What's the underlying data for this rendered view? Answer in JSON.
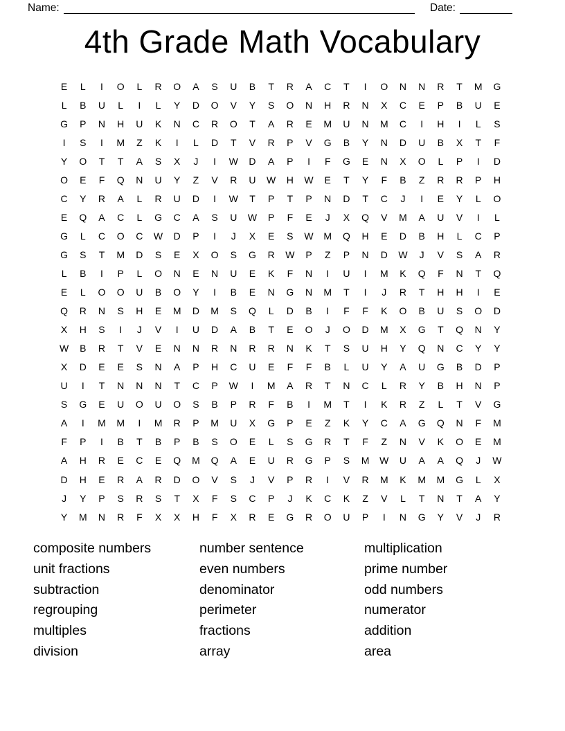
{
  "header": {
    "name_label": "Name:",
    "date_label": "Date:"
  },
  "title": "4th Grade Math Vocabulary",
  "grid": {
    "rows": [
      "ELIOLROASUBTRACTIONNRTMG",
      "LBULILYDOVYSONHRNXCEPBUE",
      "GPNHUKNCROTAREMUNMCIHILS",
      "ISIMZKILDTVRPVGBYNDUBXTF",
      "YOTTASXJIWDAPIFGENXOLPID",
      "OEFQNUYZVRUWHWETYFBZRRPH",
      "CYRALRUDIWTPTPNDTCJIEYLO",
      "EQACLGCASUWPFEJXQVMAUVIL",
      "GLCOCWDPIJXESWMQHEDBHLCP",
      "GSTMDSEXOSGRWPZPNDWJVSAR",
      "LBIPLONENUEKFNIUIMKQFNTQ",
      "ELOOUBOYIBENGNMTIJRTHHIE",
      "QRNSHEMDMSQLDBIFFKOBUSOD",
      "XHSIJVIUDABTEOJODMXGTQNY",
      "WBRTVENNRNRRNKTSUHYQNCYY",
      "XDEESNAPHCUEFFBLUYAUGBDP",
      "UITNNNTCPWIMARTNCLRYBHNP",
      "SGEUOUOSBPRFBIMTIKRZLTVG",
      "AIMMIMRPMUXGPEZKYCAGQNFM",
      "FPIBTBPBSOELSGRTFZNVKOEM",
      "AHRECEQMQAEURGPSMWUAAQJW",
      "DHERARDOVSJVPRIVRMKMMGLX",
      "JYPSRSTXFSCPJKCKZVLTNTAY",
      "YMNRFXXHFXREGROUPINGYVJR"
    ]
  },
  "word_list": {
    "columns": [
      [
        "composite numbers",
        "unit fractions",
        "subtraction",
        "regrouping",
        "multiples",
        "division"
      ],
      [
        "number sentence",
        "even numbers",
        "denominator",
        "perimeter",
        "fractions",
        "array"
      ],
      [
        "multiplication",
        "prime number",
        "odd numbers",
        "numerator",
        "addition",
        "area"
      ]
    ]
  },
  "colors": {
    "text": "#000000",
    "background": "#ffffff"
  }
}
